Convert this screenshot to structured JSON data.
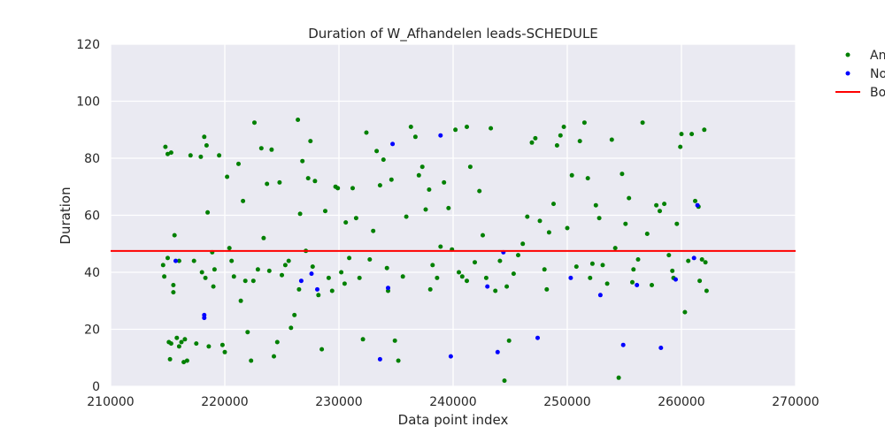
{
  "chart_data": {
    "type": "scatter",
    "title": "Duration of W_Afhandelen leads-SCHEDULE",
    "xlabel": "Data point index",
    "ylabel": "Duration",
    "xlim": [
      210000,
      270000
    ],
    "ylim": [
      0,
      120
    ],
    "xticks": [
      "210000",
      "220000",
      "230000",
      "240000",
      "250000",
      "260000",
      "270000"
    ],
    "yticks": [
      "0",
      "20",
      "40",
      "60",
      "80",
      "100",
      "120"
    ],
    "grid": true,
    "legend_position": "outside-top-right",
    "series": [
      {
        "name": "An",
        "color": "#008000",
        "marker": "dot",
        "points": [
          [
            214800,
            84
          ],
          [
            215000,
            81.5
          ],
          [
            215300,
            82
          ],
          [
            214600,
            42.5
          ],
          [
            214700,
            38.5
          ],
          [
            215000,
            45
          ],
          [
            215100,
            15.5
          ],
          [
            215300,
            15
          ],
          [
            215500,
            35.5
          ],
          [
            215200,
            9.5
          ],
          [
            215600,
            53
          ],
          [
            215800,
            17
          ],
          [
            216000,
            14
          ],
          [
            216200,
            15.5
          ],
          [
            216500,
            16.5
          ],
          [
            216700,
            9
          ],
          [
            215500,
            33
          ],
          [
            216400,
            8.5
          ],
          [
            217000,
            81
          ],
          [
            217300,
            44
          ],
          [
            217500,
            15
          ],
          [
            217900,
            80.5
          ],
          [
            218200,
            87.5
          ],
          [
            218400,
            84.5
          ],
          [
            218500,
            61
          ],
          [
            218000,
            40
          ],
          [
            218300,
            38
          ],
          [
            218600,
            14
          ],
          [
            218900,
            47
          ],
          [
            219100,
            41
          ],
          [
            219500,
            81
          ],
          [
            219800,
            14.5
          ],
          [
            220000,
            12
          ],
          [
            220200,
            73.5
          ],
          [
            220400,
            48.5
          ],
          [
            220600,
            44
          ],
          [
            220800,
            38.5
          ],
          [
            221200,
            78
          ],
          [
            221400,
            30
          ],
          [
            221600,
            65
          ],
          [
            221800,
            37
          ],
          [
            222000,
            19
          ],
          [
            222300,
            9
          ],
          [
            222600,
            92.5
          ],
          [
            222900,
            41
          ],
          [
            223200,
            83.5
          ],
          [
            223400,
            52
          ],
          [
            223700,
            71
          ],
          [
            223900,
            40.5
          ],
          [
            224100,
            83
          ],
          [
            224300,
            10.5
          ],
          [
            224600,
            15.5
          ],
          [
            224800,
            71.5
          ],
          [
            225000,
            39
          ],
          [
            225300,
            42.5
          ],
          [
            225600,
            44
          ],
          [
            225800,
            20.5
          ],
          [
            226100,
            25
          ],
          [
            226400,
            93.5
          ],
          [
            226600,
            60.5
          ],
          [
            226800,
            79
          ],
          [
            227100,
            47.5
          ],
          [
            227300,
            73
          ],
          [
            227500,
            86
          ],
          [
            227700,
            42
          ],
          [
            227900,
            72
          ],
          [
            228200,
            32
          ],
          [
            228500,
            13
          ],
          [
            228800,
            61.5
          ],
          [
            229100,
            38
          ],
          [
            229400,
            33.5
          ],
          [
            229700,
            70
          ],
          [
            229900,
            69.5
          ],
          [
            230200,
            40
          ],
          [
            230600,
            57.5
          ],
          [
            230900,
            45
          ],
          [
            231200,
            69.5
          ],
          [
            231500,
            59
          ],
          [
            231800,
            38
          ],
          [
            232100,
            16.5
          ],
          [
            232400,
            89
          ],
          [
            232700,
            44.5
          ],
          [
            233000,
            54.5
          ],
          [
            233300,
            82.5
          ],
          [
            233600,
            70.5
          ],
          [
            233900,
            79.5
          ],
          [
            234200,
            41.5
          ],
          [
            234600,
            72.5
          ],
          [
            234900,
            16
          ],
          [
            235200,
            9
          ],
          [
            235600,
            38.5
          ],
          [
            235900,
            59.5
          ],
          [
            236300,
            91
          ],
          [
            236700,
            87.5
          ],
          [
            237000,
            74
          ],
          [
            237300,
            77
          ],
          [
            237600,
            62
          ],
          [
            237900,
            69
          ],
          [
            238200,
            42.5
          ],
          [
            238600,
            38
          ],
          [
            238900,
            49
          ],
          [
            239200,
            71.5
          ],
          [
            239600,
            62.5
          ],
          [
            239900,
            48
          ],
          [
            240200,
            90
          ],
          [
            240500,
            40
          ],
          [
            240800,
            38.5
          ],
          [
            241200,
            91
          ],
          [
            241500,
            77
          ],
          [
            241900,
            43.5
          ],
          [
            242300,
            68.5
          ],
          [
            242600,
            53
          ],
          [
            242900,
            38
          ],
          [
            243300,
            90.5
          ],
          [
            243700,
            33.5
          ],
          [
            244100,
            44
          ],
          [
            244500,
            2
          ],
          [
            244900,
            16
          ],
          [
            245300,
            39.5
          ],
          [
            245700,
            46
          ],
          [
            246100,
            50
          ],
          [
            246500,
            59.5
          ],
          [
            246900,
            85.5
          ],
          [
            247200,
            87
          ],
          [
            247600,
            58
          ],
          [
            248000,
            41
          ],
          [
            248400,
            54
          ],
          [
            248800,
            64
          ],
          [
            249100,
            84.5
          ],
          [
            249400,
            88
          ],
          [
            249700,
            91
          ],
          [
            250000,
            55.5
          ],
          [
            250400,
            74
          ],
          [
            250800,
            42
          ],
          [
            251100,
            86
          ],
          [
            251500,
            92.5
          ],
          [
            251800,
            73
          ],
          [
            252200,
            43
          ],
          [
            252500,
            63.5
          ],
          [
            252800,
            59
          ],
          [
            253100,
            42.5
          ],
          [
            253500,
            36
          ],
          [
            253900,
            86.5
          ],
          [
            254200,
            48.5
          ],
          [
            254500,
            3
          ],
          [
            254800,
            74.5
          ],
          [
            255100,
            57
          ],
          [
            255400,
            66
          ],
          [
            255800,
            41
          ],
          [
            256200,
            44.5
          ],
          [
            256600,
            92.5
          ],
          [
            257000,
            53.5
          ],
          [
            257400,
            35.5
          ],
          [
            257800,
            63.5
          ],
          [
            258100,
            61.5
          ],
          [
            258500,
            64
          ],
          [
            258900,
            46
          ],
          [
            259200,
            40.5
          ],
          [
            259600,
            57
          ],
          [
            259900,
            84
          ],
          [
            260000,
            88.5
          ],
          [
            260300,
            26
          ],
          [
            260600,
            44
          ],
          [
            260900,
            88.5
          ],
          [
            261200,
            65
          ],
          [
            261500,
            63
          ],
          [
            261800,
            44.5
          ],
          [
            262000,
            90
          ],
          [
            262100,
            43.5
          ],
          [
            262200,
            33.5
          ],
          [
            216000,
            44
          ],
          [
            219000,
            35
          ],
          [
            222500,
            37
          ],
          [
            226500,
            34
          ],
          [
            230500,
            36
          ],
          [
            234300,
            33.5
          ],
          [
            238000,
            34
          ],
          [
            241200,
            37
          ],
          [
            244700,
            35
          ],
          [
            248200,
            34
          ],
          [
            252000,
            38
          ],
          [
            255700,
            36.5
          ],
          [
            259300,
            38
          ],
          [
            261600,
            37
          ]
        ]
      },
      {
        "name": "No",
        "color": "#0000ff",
        "marker": "dot",
        "points": [
          [
            215700,
            44
          ],
          [
            218200,
            25
          ],
          [
            218200,
            24
          ],
          [
            226700,
            37
          ],
          [
            227600,
            39.5
          ],
          [
            228100,
            34
          ],
          [
            234300,
            34.5
          ],
          [
            234700,
            85
          ],
          [
            233600,
            9.5
          ],
          [
            238900,
            88
          ],
          [
            239800,
            10.5
          ],
          [
            243000,
            35
          ],
          [
            243900,
            12
          ],
          [
            244400,
            47
          ],
          [
            247400,
            17
          ],
          [
            250300,
            38
          ],
          [
            252900,
            32
          ],
          [
            254900,
            14.5
          ],
          [
            256100,
            35.5
          ],
          [
            258200,
            13.5
          ],
          [
            259500,
            37.5
          ],
          [
            261100,
            45
          ],
          [
            261400,
            63.5
          ]
        ]
      }
    ],
    "lines": [
      {
        "name": "Bo",
        "color": "#ff0000",
        "y": 47.5
      }
    ]
  }
}
